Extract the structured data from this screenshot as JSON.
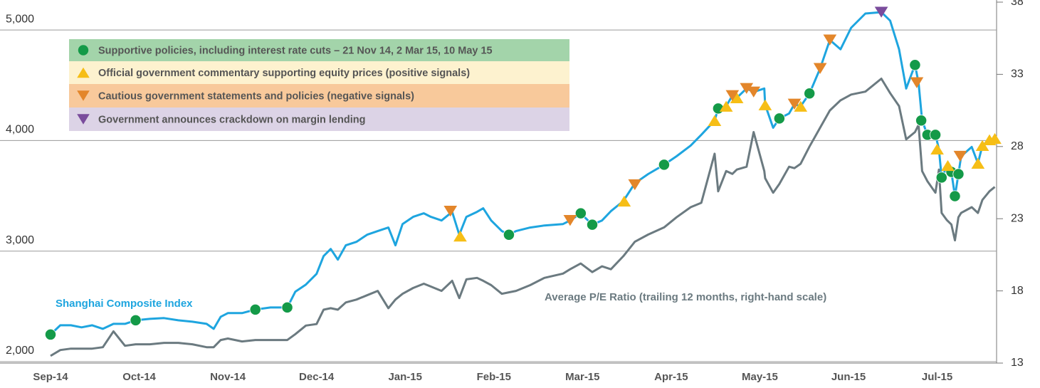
{
  "chart_data": {
    "type": "line",
    "xlim": [
      -0.57,
      10.67
    ],
    "xticks": [
      {
        "value": 0,
        "label": "Sep-14"
      },
      {
        "value": 1,
        "label": "Oct-14"
      },
      {
        "value": 2,
        "label": "Nov-14"
      },
      {
        "value": 3,
        "label": "Dec-14"
      },
      {
        "value": 4,
        "label": "Jan-15"
      },
      {
        "value": 5,
        "label": "Feb-15"
      },
      {
        "value": 6,
        "label": "Mar-15"
      },
      {
        "value": 7,
        "label": "Apr-15"
      },
      {
        "value": 8,
        "label": "May-15"
      },
      {
        "value": 9,
        "label": "Jun-15"
      },
      {
        "value": 10,
        "label": "Jul-15"
      }
    ],
    "ylim": [
      1987,
      5252
    ],
    "yticks": [
      {
        "value": 2000,
        "label": "2,000"
      },
      {
        "value": 3000,
        "label": "3,000"
      },
      {
        "value": 4000,
        "label": "4,000"
      },
      {
        "value": 5000,
        "label": "5,000"
      }
    ],
    "y2lim": [
      13,
      38
    ],
    "y2ticks": [
      13,
      18,
      23,
      28,
      33,
      38
    ],
    "grid": true,
    "legend": "upper left",
    "x": [
      0,
      0.11,
      0.23,
      0.35,
      0.47,
      0.59,
      0.71,
      0.84,
      0.96,
      1.12,
      1.28,
      1.44,
      1.6,
      1.76,
      1.84,
      1.92,
      2,
      2.16,
      2.31,
      2.48,
      2.67,
      2.76,
      2.88,
      3,
      3.08,
      3.16,
      3.24,
      3.33,
      3.45,
      3.57,
      3.69,
      3.81,
      3.89,
      3.97,
      4.09,
      4.21,
      4.29,
      4.41,
      4.53,
      4.61,
      4.69,
      4.81,
      4.88,
      4.97,
      5.09,
      5.17,
      5.25,
      5.41,
      5.57,
      5.78,
      5.86,
      5.98,
      6.11,
      6.22,
      6.32,
      6.46,
      6.59,
      6.74,
      6.92,
      7.06,
      7.22,
      7.34,
      7.49,
      7.53,
      7.62,
      7.69,
      7.74,
      7.85,
      7.93,
      8.05,
      8.06,
      8.15,
      8.22,
      8.33,
      8.39,
      8.46,
      8.56,
      8.68,
      8.79,
      8.91,
      9.03,
      9.19,
      9.37,
      9.47,
      9.57,
      9.65,
      9.75,
      9.79,
      9.83,
      9.89,
      9.98,
      10.02,
      10.05,
      10.11,
      10.16,
      10.2,
      10.24,
      10.27,
      10.39,
      10.46,
      10.51,
      10.59,
      10.65
    ],
    "series": [
      {
        "name": "Average P/E Ratio (trailing 12 months, right-hand scale)",
        "color": "#6b7a80",
        "axis": "y2",
        "values": [
          13.5,
          13.9,
          14,
          14,
          14,
          14.1,
          15.2,
          14.2,
          14.3,
          14.3,
          14.4,
          14.4,
          14.3,
          14.1,
          14.1,
          14.6,
          14.7,
          14.5,
          14.6,
          14.6,
          14.6,
          15,
          15.6,
          15.7,
          16.7,
          16.8,
          16.7,
          17.2,
          17.4,
          17.7,
          18,
          16.8,
          17.4,
          17.8,
          18.2,
          18.5,
          18.3,
          18,
          18.7,
          17.5,
          18.8,
          18.9,
          18.7,
          18.4,
          17.8,
          17.9,
          18,
          18.4,
          18.9,
          19.2,
          19.5,
          19.9,
          19.3,
          19.7,
          19.5,
          20.4,
          21.4,
          21.9,
          22.4,
          23.1,
          23.8,
          24.1,
          27.5,
          24.9,
          26.3,
          26.1,
          26.4,
          26.6,
          29,
          26.3,
          25.8,
          24.8,
          25.4,
          26.6,
          26.5,
          26.8,
          28,
          29.3,
          30.5,
          31.2,
          31.6,
          31.8,
          32.7,
          31.7,
          30.8,
          28.5,
          29,
          29.5,
          26.3,
          25.6,
          24.8,
          26.4,
          23.4,
          22.9,
          22.6,
          21.5,
          23.1,
          23.4,
          23.8,
          23.4,
          24.3,
          24.9,
          25.2
        ]
      },
      {
        "name": "Shanghai Composite Index",
        "color": "#1ea5df",
        "values": [
          2245,
          2329,
          2329,
          2310,
          2329,
          2297,
          2342,
          2342,
          2374,
          2387,
          2394,
          2374,
          2361,
          2342,
          2297,
          2406,
          2439,
          2439,
          2471,
          2490,
          2490,
          2632,
          2697,
          2794,
          2955,
          3019,
          2923,
          3052,
          3084,
          3148,
          3181,
          3213,
          3052,
          3245,
          3310,
          3342,
          3310,
          3277,
          3355,
          3148,
          3310,
          3355,
          3387,
          3277,
          3181,
          3148,
          3181,
          3213,
          3232,
          3245,
          3277,
          3342,
          3239,
          3277,
          3361,
          3452,
          3613,
          3697,
          3781,
          3858,
          3955,
          4052,
          4181,
          4290,
          4310,
          4407,
          4387,
          4471,
          4439,
          4471,
          4323,
          4116,
          4200,
          4245,
          4329,
          4310,
          4426,
          4652,
          4910,
          4826,
          5020,
          5149,
          5161,
          5084,
          4826,
          4471,
          4684,
          4523,
          4181,
          4052,
          4052,
          3923,
          3665,
          3761,
          3716,
          3497,
          3697,
          3858,
          3942,
          3794,
          3955,
          4007,
          4019
        ]
      },
      {
        "name": "Supportive policies, including interest rate cuts – 21 Nov 14, 2 Mar 15, 10 May 15",
        "color": "#149a48",
        "background": "#a3d4aa",
        "marker": "circle",
        "x": [
          0,
          0.96,
          2.31,
          2.67,
          5.17,
          5.98,
          6.11,
          6.92,
          7.53,
          8.22,
          8.56,
          9.75,
          9.82,
          9.89,
          9.98,
          10.05,
          10.16,
          10.2,
          10.24
        ],
        "values": [
          2245,
          2374,
          2471,
          2490,
          3148,
          3342,
          3239,
          3781,
          4290,
          4200,
          4426,
          4684,
          4181,
          4052,
          4052,
          3665,
          3716,
          3497,
          3697
        ]
      },
      {
        "name": "Official government commentary supporting equity prices (positive signals)",
        "color": "#f6be16",
        "background": "#fdf2cf",
        "marker": "triangle-up",
        "x": [
          4.62,
          6.47,
          7.49,
          7.62,
          7.74,
          8.06,
          8.46,
          10,
          10.12,
          10.46,
          10.51,
          10.59,
          10.65
        ],
        "values": [
          3136,
          3452,
          4181,
          4310,
          4387,
          4323,
          4310,
          3923,
          3774,
          3794,
          3955,
          4007,
          4019
        ]
      },
      {
        "name": "Cautious government statements and policies (negative signals)",
        "color": "#e3862a",
        "background": "#f8c99b",
        "marker": "triangle-down",
        "x": [
          4.51,
          5.86,
          6.59,
          7.69,
          7.85,
          7.93,
          8.39,
          8.68,
          8.79,
          9.77,
          10.26
        ],
        "values": [
          3361,
          3277,
          3600,
          4407,
          4471,
          4439,
          4329,
          4652,
          4910,
          4523,
          3858
        ]
      },
      {
        "name": "Government announces crackdown on margin lending",
        "color": "#7a4c9c",
        "background": "#dcd3e6",
        "marker": "triangle-down",
        "x": [
          9.37
        ],
        "values": [
          5161
        ]
      }
    ]
  }
}
